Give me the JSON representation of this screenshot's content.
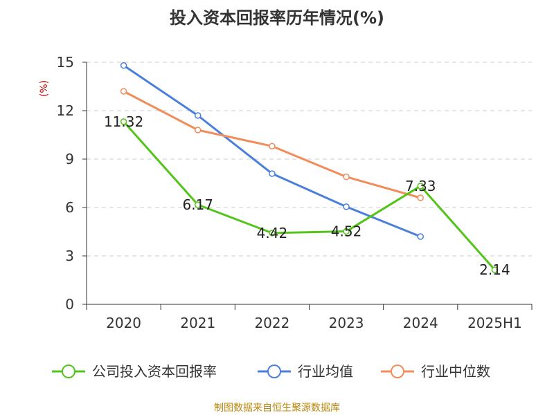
{
  "chart_data": {
    "type": "line",
    "title": "投入资本回报率历年情况(%)",
    "ylabel": "(%)",
    "xlabel": "",
    "categories": [
      "2020",
      "2021",
      "2022",
      "2023",
      "2024",
      "2025H1"
    ],
    "ylim": [
      0,
      15
    ],
    "yticks": [
      0,
      3,
      6,
      9,
      12,
      15
    ],
    "grid": true,
    "legend_position": "bottom",
    "series": [
      {
        "name": "公司投入资本回报率",
        "color": "#52c41a",
        "values": [
          11.32,
          6.17,
          4.42,
          4.52,
          7.33,
          2.14
        ],
        "labels": [
          "11.32",
          "6.17",
          "4.42",
          "4.52",
          "7.33",
          "2.14"
        ]
      },
      {
        "name": "行业均值",
        "color": "#4a7fdb",
        "values": [
          14.8,
          11.7,
          8.1,
          6.05,
          4.2,
          null
        ]
      },
      {
        "name": "行业中位数",
        "color": "#f28c5a",
        "values": [
          13.2,
          10.8,
          9.8,
          7.9,
          6.6,
          null
        ]
      }
    ]
  },
  "source": "制图数据来自恒生聚源数据库"
}
